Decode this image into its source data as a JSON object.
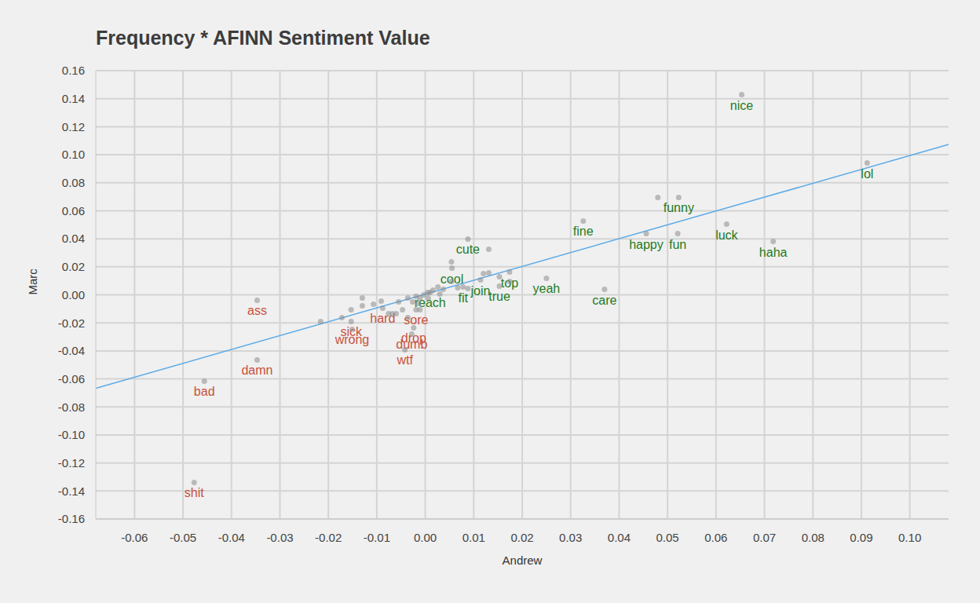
{
  "chart_data": {
    "type": "scatter",
    "title": "Frequency * AFINN Sentiment Value",
    "x_label": "Andrew",
    "y_label": "Marc",
    "grid": true,
    "xlim": [
      -0.068,
      0.108
    ],
    "xticks": [
      {
        "value": -0.06,
        "label": "-0.06"
      },
      {
        "value": -0.05,
        "label": "-0.05"
      },
      {
        "value": -0.04,
        "label": "-0.04"
      },
      {
        "value": -0.03,
        "label": "-0.03"
      },
      {
        "value": -0.02,
        "label": "-0.02"
      },
      {
        "value": -0.01,
        "label": "-0.01"
      },
      {
        "value": 0,
        "label": "0.00"
      },
      {
        "value": 0.01,
        "label": "0.01"
      },
      {
        "value": 0.02,
        "label": "0.02"
      },
      {
        "value": 0.03,
        "label": "0.03"
      },
      {
        "value": 0.04,
        "label": "0.04"
      },
      {
        "value": 0.05,
        "label": "0.05"
      },
      {
        "value": 0.06,
        "label": "0.06"
      },
      {
        "value": 0.07,
        "label": "0.07"
      },
      {
        "value": 0.08,
        "label": "0.08"
      },
      {
        "value": 0.09,
        "label": "0.09"
      },
      {
        "value": 0.1,
        "label": "0.10"
      }
    ],
    "ylim": [
      -0.16,
      0.16
    ],
    "yticks": [
      {
        "value": -0.16,
        "label": "-0.16"
      },
      {
        "value": -0.14,
        "label": "-0.14"
      },
      {
        "value": -0.12,
        "label": "-0.12"
      },
      {
        "value": -0.1,
        "label": "-0.10"
      },
      {
        "value": -0.08,
        "label": "-0.08"
      },
      {
        "value": -0.06,
        "label": "-0.06"
      },
      {
        "value": -0.04,
        "label": "-0.04"
      },
      {
        "value": -0.02,
        "label": "-0.02"
      },
      {
        "value": 0,
        "label": "0.00"
      },
      {
        "value": 0.02,
        "label": "0.02"
      },
      {
        "value": 0.04,
        "label": "0.04"
      },
      {
        "value": 0.06,
        "label": "0.06"
      },
      {
        "value": 0.08,
        "label": "0.08"
      },
      {
        "value": 0.1,
        "label": "0.10"
      },
      {
        "value": 0.12,
        "label": "0.12"
      },
      {
        "value": 0.14,
        "label": "0.14"
      },
      {
        "value": 0.16,
        "label": "0.16"
      }
    ],
    "trend_line": {
      "x": [
        -0.068,
        0.108
      ],
      "y": [
        -0.0667,
        0.1073
      ],
      "color": "#5aa9e6"
    },
    "series": [
      {
        "color": "#1e7b1e",
        "labels": [
          "nice",
          "lol",
          "funny",
          "fine",
          "happy",
          "fun",
          "luck",
          "haha",
          "cute",
          "cool",
          "yeah",
          "care",
          "join",
          "top",
          "true",
          "fit",
          "reach"
        ],
        "x": [
          0.0653,
          0.0912,
          0.0523,
          0.0326,
          0.0456,
          0.0521,
          0.0622,
          0.0718,
          0.0088,
          0.0055,
          0.025,
          0.037,
          0.0114,
          0.0174,
          0.0153,
          0.0078,
          0.001
        ],
        "y": [
          0.1429,
          0.0941,
          0.0695,
          0.0527,
          0.0437,
          0.0437,
          0.0504,
          0.0381,
          0.0398,
          0.019,
          0.0118,
          0.0039,
          0.0106,
          0.0162,
          0.0062,
          0.0056,
          0.0017
        ]
      },
      {
        "color": "#c9503c",
        "labels": [
          "sore",
          "drop",
          "dumb",
          "wtf",
          "hard",
          "sick",
          "wrong",
          "ass",
          "damn",
          "bad",
          "shit"
        ],
        "x": [
          -0.0019,
          -0.0024,
          -0.0028,
          -0.0042,
          -0.0088,
          -0.0153,
          -0.0151,
          -0.0347,
          -0.0347,
          -0.0456,
          -0.0477
        ],
        "y": [
          -0.0106,
          -0.0235,
          -0.028,
          -0.0392,
          -0.0095,
          -0.019,
          -0.0246,
          -0.0039,
          -0.0465,
          -0.0616,
          -0.1339
        ]
      },
      {
        "x": [
          0.048,
          -0.0216,
          -0.013,
          -0.013,
          -0.0107,
          -0.0091,
          -0.0076,
          -0.0068,
          -0.0055,
          -0.006,
          -0.0047,
          -0.0036,
          -0.0026,
          -0.0019,
          -0.0011,
          -0.0003,
          0.0005,
          0.0016,
          0.0026,
          0.0037,
          0.0054,
          0.0054,
          0.0067,
          0.0088,
          0.012,
          0.0131,
          0.0131,
          0.0153,
          0.0174,
          -0.0153,
          -0.0172,
          -0.0011,
          -0.0036,
          0.003,
          0.0006,
          -0.0015
        ],
        "y": [
          0.0695,
          -0.019,
          -0.0022,
          -0.0078,
          -0.0067,
          -0.0045,
          -0.0134,
          -0.0134,
          -0.005,
          -0.0134,
          -0.0106,
          -0.0022,
          -0.005,
          -0.0011,
          -0.0022,
          0,
          0.0017,
          0.0034,
          0.0056,
          0.0039,
          0.0095,
          0.0235,
          0.005,
          0.0045,
          0.0151,
          0.0157,
          0.0325,
          0.0129,
          0.0095,
          -0.0106,
          -0.0162,
          -0.0106,
          -0.0162,
          0.0006,
          -0.0022,
          -0.0062
        ]
      }
    ]
  }
}
